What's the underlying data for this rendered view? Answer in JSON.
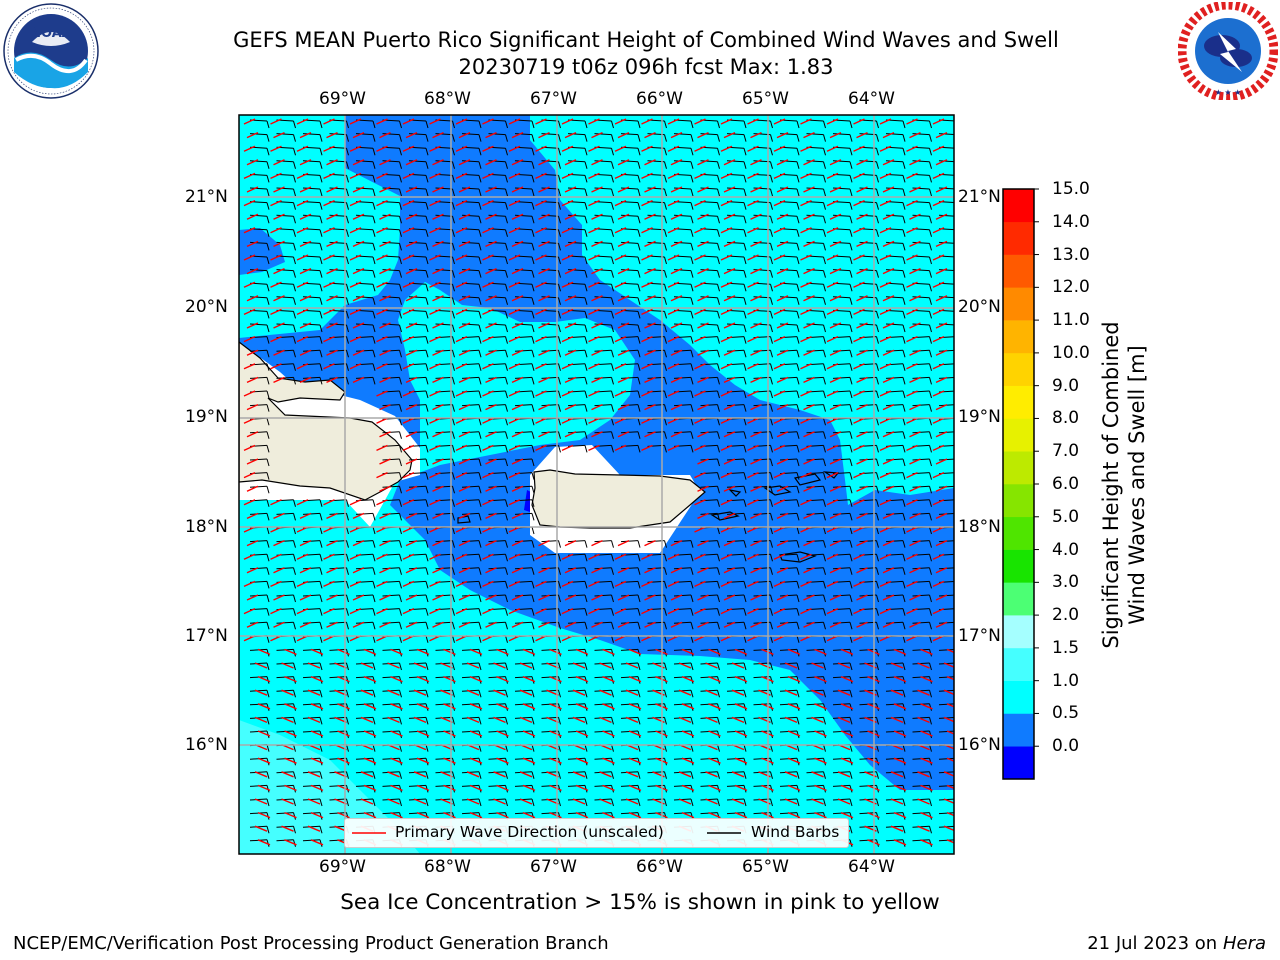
{
  "title": {
    "line1": "GEFS MEAN Puerto Rico Significant Height of Combined Wind Waves and Swell",
    "line2": "20230719 t06z 096h fcst   Max: 1.83"
  },
  "logos": {
    "noaa": {
      "text": "NOAA",
      "ring_text": "NATIONAL OCEANIC AND ATMOSPHERIC ADMINISTRATION · U.S. DEPARTMENT OF COMMERCE"
    },
    "nws": {
      "ring_text": "NATIONAL WEATHER SERVICE"
    }
  },
  "map": {
    "lon_ticks_top": [
      "69°W",
      "68°W",
      "67°W",
      "66°W",
      "65°W",
      "64°W"
    ],
    "lon_ticks_bottom": [
      "69°W",
      "68°W",
      "67°W",
      "66°W",
      "65°W",
      "64°W"
    ],
    "lat_ticks_left": [
      "21°N",
      "20°N",
      "19°N",
      "18°N",
      "17°N",
      "16°N"
    ],
    "lat_ticks_right": [
      "21°N",
      "20°N",
      "19°N",
      "18°N",
      "17°N",
      "16°N"
    ],
    "extent": {
      "lon_min": -70.0,
      "lon_max": -63.25,
      "lat_min": 15.0,
      "lat_max": 21.75
    },
    "colors": {
      "band_0_05": "#0000ff",
      "band_05_1": "#0f7bff",
      "band_1_15": "#00ffff",
      "band_15_2": "#45ffff",
      "land": "#efeddc",
      "wave_arrow": "#ff0000",
      "wind_barb": "#000000"
    }
  },
  "legend": {
    "wave_direction": "Primary Wave Direction (unscaled)",
    "wind_barbs": "Wind Barbs"
  },
  "colorbar": {
    "ticks": [
      "15.0",
      "14.0",
      "13.0",
      "12.0",
      "11.0",
      "10.0",
      "9.0",
      "8.0",
      "7.0",
      "6.0",
      "5.0",
      "4.0",
      "3.0",
      "2.0",
      "1.5",
      "1.0",
      "0.5",
      "0.0"
    ],
    "colors": [
      "#0000ff",
      "#0f7bff",
      "#00ffff",
      "#45ffff",
      "#a5ffff",
      "#4cff74",
      "#18e400",
      "#4fe500",
      "#86e500",
      "#bdea00",
      "#e7f100",
      "#ffed00",
      "#ffd300",
      "#ffb400",
      "#ff8a00",
      "#ff5a00",
      "#ff2a00",
      "#ff0000"
    ],
    "label_line1": "Significant Height of Combined",
    "label_line2": "Wind Waves and Swell [m]"
  },
  "note": "Sea Ice Concentration > 15% is shown in pink to yellow",
  "footer": {
    "left": "NCEP/EMC/Verification Post Processing Product Generation Branch",
    "right_date": "21 Jul 2023 on ",
    "right_host": "Hera"
  }
}
